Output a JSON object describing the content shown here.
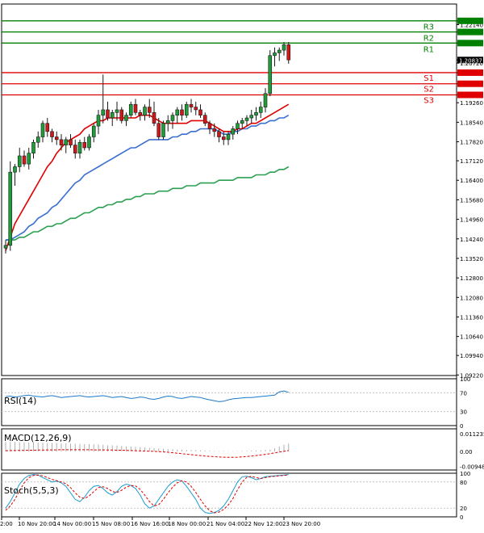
{
  "chart_data": {
    "type": "candlestick",
    "instrument_price_label": "1.20837",
    "x_tick_labels": [
      "2:00",
      "10 Nov 20:00",
      "14 Nov 00:00",
      "15 Nov 08:00",
      "16 Nov 16:00",
      "18 Nov 00:00",
      "21 Nov 04:00",
      "22 Nov 12:00",
      "23 Nov 20:00"
    ],
    "main_panel": {
      "y_range": [
        1.092,
        1.229
      ],
      "y_tick_labels": [
        "1.22280",
        "1.22140",
        "1.21870",
        "1.21460",
        "1.20837",
        "1.20720",
        "1.20370",
        "1.19960",
        "1.19550",
        "1.19260",
        "1.18540",
        "1.17820",
        "1.17120",
        "1.16400",
        "1.15680",
        "1.14960",
        "1.14240",
        "1.13520",
        "1.12800",
        "1.12080",
        "1.11360",
        "1.10640",
        "1.09940",
        "1.09220"
      ],
      "levels": [
        {
          "label": "",
          "value": 1.2228,
          "color": "#008000"
        },
        {
          "label": "R3",
          "value": 1.2187,
          "color": "#008000"
        },
        {
          "label": "R2",
          "value": 1.2146,
          "color": "#008000"
        },
        {
          "label": "R1",
          "value": null,
          "color": "#008000"
        },
        {
          "label": "S1",
          "value": 1.2037,
          "color": "#e00000"
        },
        {
          "label": "S2",
          "value": 1.1996,
          "color": "#e00000"
        },
        {
          "label": "S3",
          "value": 1.1955,
          "color": "#e00000"
        }
      ],
      "candles": [
        [
          1.139,
          1.142,
          1.137,
          1.14
        ],
        [
          1.14,
          1.171,
          1.138,
          1.167
        ],
        [
          1.167,
          1.17,
          1.162,
          1.169
        ],
        [
          1.169,
          1.176,
          1.167,
          1.173
        ],
        [
          1.173,
          1.175,
          1.169,
          1.17
        ],
        [
          1.17,
          1.176,
          1.168,
          1.174
        ],
        [
          1.174,
          1.179,
          1.172,
          1.178
        ],
        [
          1.178,
          1.182,
          1.176,
          1.18
        ],
        [
          1.18,
          1.186,
          1.178,
          1.185
        ],
        [
          1.185,
          1.187,
          1.18,
          1.182
        ],
        [
          1.182,
          1.183,
          1.178,
          1.18
        ],
        [
          1.18,
          1.182,
          1.177,
          1.179
        ],
        [
          1.179,
          1.181,
          1.175,
          1.177
        ],
        [
          1.177,
          1.18,
          1.174,
          1.179
        ],
        [
          1.179,
          1.181,
          1.176,
          1.177
        ],
        [
          1.177,
          1.179,
          1.172,
          1.174
        ],
        [
          1.174,
          1.179,
          1.172,
          1.178
        ],
        [
          1.178,
          1.18,
          1.175,
          1.176
        ],
        [
          1.176,
          1.181,
          1.175,
          1.18
        ],
        [
          1.18,
          1.185,
          1.178,
          1.184
        ],
        [
          1.184,
          1.19,
          1.181,
          1.188
        ],
        [
          1.188,
          1.203,
          1.185,
          1.19
        ],
        [
          1.19,
          1.193,
          1.186,
          1.187
        ],
        [
          1.187,
          1.19,
          1.184,
          1.189
        ],
        [
          1.189,
          1.193,
          1.186,
          1.19
        ],
        [
          1.19,
          1.191,
          1.185,
          1.186
        ],
        [
          1.186,
          1.189,
          1.184,
          1.188
        ],
        [
          1.188,
          1.193,
          1.187,
          1.192
        ],
        [
          1.192,
          1.194,
          1.188,
          1.189
        ],
        [
          1.189,
          1.19,
          1.186,
          1.188
        ],
        [
          1.188,
          1.192,
          1.186,
          1.191
        ],
        [
          1.191,
          1.194,
          1.187,
          1.189
        ],
        [
          1.189,
          1.193,
          1.184,
          1.185
        ],
        [
          1.185,
          1.187,
          1.179,
          1.18
        ],
        [
          1.18,
          1.186,
          1.179,
          1.185
        ],
        [
          1.185,
          1.188,
          1.182,
          1.186
        ],
        [
          1.186,
          1.189,
          1.183,
          1.188
        ],
        [
          1.188,
          1.191,
          1.185,
          1.19
        ],
        [
          1.19,
          1.192,
          1.186,
          1.188
        ],
        [
          1.188,
          1.193,
          1.187,
          1.192
        ],
        [
          1.192,
          1.194,
          1.189,
          1.191
        ],
        [
          1.191,
          1.193,
          1.188,
          1.19
        ],
        [
          1.19,
          1.192,
          1.187,
          1.188
        ],
        [
          1.188,
          1.189,
          1.184,
          1.185
        ],
        [
          1.185,
          1.186,
          1.181,
          1.183
        ],
        [
          1.183,
          1.185,
          1.18,
          1.182
        ],
        [
          1.182,
          1.183,
          1.178,
          1.18
        ],
        [
          1.18,
          1.182,
          1.177,
          1.179
        ],
        [
          1.179,
          1.182,
          1.177,
          1.181
        ],
        [
          1.181,
          1.184,
          1.179,
          1.183
        ],
        [
          1.183,
          1.186,
          1.181,
          1.185
        ],
        [
          1.185,
          1.187,
          1.183,
          1.186
        ],
        [
          1.186,
          1.188,
          1.184,
          1.187
        ],
        [
          1.187,
          1.19,
          1.185,
          1.188
        ],
        [
          1.188,
          1.191,
          1.186,
          1.189
        ],
        [
          1.189,
          1.193,
          1.187,
          1.191
        ],
        [
          1.191,
          1.198,
          1.189,
          1.196
        ],
        [
          1.196,
          1.212,
          1.195,
          1.21
        ],
        [
          1.21,
          1.213,
          1.206,
          1.211
        ],
        [
          1.211,
          1.213,
          1.208,
          1.212
        ],
        [
          1.212,
          1.215,
          1.21,
          1.214
        ],
        [
          1.214,
          1.215,
          1.207,
          1.2084
        ]
      ],
      "ma_fast": {
        "color": "#e00000",
        "values": [
          1.138,
          1.143,
          1.148,
          1.151,
          1.154,
          1.157,
          1.16,
          1.163,
          1.166,
          1.169,
          1.171,
          1.174,
          1.176,
          1.178,
          1.179,
          1.18,
          1.181,
          1.183,
          1.184,
          1.185,
          1.186,
          1.186,
          1.187,
          1.187,
          1.187,
          1.187,
          1.187,
          1.187,
          1.187,
          1.188,
          1.188,
          1.188,
          1.187,
          1.186,
          1.185,
          1.185,
          1.185,
          1.185,
          1.185,
          1.185,
          1.186,
          1.186,
          1.186,
          1.186,
          1.185,
          1.184,
          1.183,
          1.182,
          1.182,
          1.182,
          1.183,
          1.183,
          1.184,
          1.185,
          1.185,
          1.186,
          1.187,
          1.188,
          1.189,
          1.19,
          1.191,
          1.192
        ]
      },
      "ma_mid": {
        "color": "#3a6fd0",
        "values": [
          1.142,
          1.142,
          1.143,
          1.144,
          1.145,
          1.147,
          1.148,
          1.15,
          1.151,
          1.152,
          1.154,
          1.155,
          1.157,
          1.159,
          1.161,
          1.163,
          1.164,
          1.166,
          1.167,
          1.168,
          1.169,
          1.17,
          1.171,
          1.172,
          1.173,
          1.174,
          1.175,
          1.176,
          1.176,
          1.177,
          1.178,
          1.179,
          1.179,
          1.179,
          1.179,
          1.179,
          1.18,
          1.18,
          1.181,
          1.181,
          1.182,
          1.182,
          1.183,
          1.183,
          1.183,
          1.183,
          1.182,
          1.181,
          1.181,
          1.182,
          1.182,
          1.183,
          1.183,
          1.184,
          1.184,
          1.185,
          1.185,
          1.186,
          1.186,
          1.187,
          1.187,
          1.188
        ]
      },
      "ma_slow": {
        "color": "#2aa050",
        "values": [
          1.142,
          1.142,
          1.142,
          1.143,
          1.143,
          1.144,
          1.145,
          1.145,
          1.146,
          1.147,
          1.147,
          1.148,
          1.148,
          1.149,
          1.15,
          1.15,
          1.151,
          1.152,
          1.152,
          1.153,
          1.154,
          1.154,
          1.155,
          1.155,
          1.156,
          1.156,
          1.157,
          1.157,
          1.158,
          1.158,
          1.159,
          1.159,
          1.159,
          1.16,
          1.16,
          1.16,
          1.161,
          1.161,
          1.161,
          1.162,
          1.162,
          1.162,
          1.163,
          1.163,
          1.163,
          1.163,
          1.164,
          1.164,
          1.164,
          1.164,
          1.165,
          1.165,
          1.165,
          1.165,
          1.166,
          1.166,
          1.166,
          1.167,
          1.167,
          1.168,
          1.168,
          1.169
        ]
      }
    },
    "rsi_panel": {
      "label": "RSI(14)",
      "y_range": [
        0,
        100
      ],
      "y_tick_labels": [
        "100",
        "70",
        "30",
        "0"
      ],
      "color": "#1e78c8",
      "values": [
        62,
        63,
        61,
        62,
        64,
        65,
        63,
        62,
        61,
        63,
        64,
        62,
        60,
        61,
        62,
        63,
        64,
        62,
        61,
        62,
        63,
        64,
        62,
        60,
        61,
        62,
        60,
        58,
        59,
        61,
        60,
        57,
        56,
        58,
        61,
        63,
        62,
        59,
        58,
        60,
        62,
        61,
        60,
        57,
        55,
        53,
        51,
        52,
        55,
        57,
        58,
        59,
        60,
        60,
        61,
        62,
        63,
        64,
        65,
        72,
        74,
        71
      ]
    },
    "macd_panel": {
      "label": "MACD(12,26,9)",
      "y_range": [
        -0.0117,
        0.0143
      ],
      "y_tick_labels": [
        "0.011235",
        "0.00",
        "-0.009486"
      ],
      "hist_color": "#b0b0b0",
      "signal_color": "#e00000",
      "hist": [
        0.006,
        0.0061,
        0.006,
        0.0059,
        0.0058,
        0.0057,
        0.0057,
        0.0056,
        0.0055,
        0.0054,
        0.0054,
        0.0053,
        0.0052,
        0.0051,
        0.005,
        0.0049,
        0.0048,
        0.0047,
        0.0046,
        0.0045,
        0.0044,
        0.0042,
        0.004,
        0.0039,
        0.0037,
        0.0035,
        0.0033,
        0.0031,
        0.0029,
        0.0027,
        0.0025,
        0.0023,
        0.0021,
        0.0019,
        0.0017,
        0.0015,
        0.0014,
        0.0012,
        0.0011,
        0.001,
        0.0009,
        0.0008,
        0.0007,
        0.0006,
        0.0005,
        0.0004,
        0.0003,
        0.0003,
        0.0002,
        0.0002,
        0.0003,
        0.0003,
        0.0004,
        0.0005,
        0.0006,
        0.0007,
        0.0009,
        0.0012,
        0.002,
        0.0032,
        0.0042,
        0.005
      ],
      "signal": [
        0.0005,
        0.0006,
        0.0006,
        0.0007,
        0.0007,
        0.0008,
        0.0008,
        0.0009,
        0.0009,
        0.001,
        0.001,
        0.001,
        0.0011,
        0.0011,
        0.0011,
        0.0011,
        0.0011,
        0.0011,
        0.0011,
        0.001,
        0.001,
        0.001,
        0.0009,
        0.0009,
        0.0008,
        0.0008,
        0.0007,
        0.0006,
        0.0005,
        0.0004,
        0.0003,
        0.0002,
        0.0001,
        -0.0001,
        -0.0003,
        -0.0005,
        -0.0008,
        -0.0011,
        -0.0014,
        -0.0017,
        -0.002,
        -0.0023,
        -0.0026,
        -0.0029,
        -0.0031,
        -0.0033,
        -0.0035,
        -0.0036,
        -0.0037,
        -0.0037,
        -0.0036,
        -0.0034,
        -0.0032,
        -0.0029,
        -0.0026,
        -0.0022,
        -0.0018,
        -0.0014,
        -0.0009,
        -0.0004,
        0.0001,
        0.0006
      ]
    },
    "stoch_panel": {
      "label": "Stoch(5,5,3)",
      "y_range": [
        0,
        100
      ],
      "y_tick_labels": [
        "100",
        "80",
        "20",
        "0"
      ],
      "k_color": "#1e9bd0",
      "d_color": "#e00000",
      "k": [
        20,
        35,
        55,
        75,
        88,
        95,
        97,
        96,
        90,
        85,
        80,
        82,
        78,
        70,
        55,
        40,
        35,
        45,
        60,
        70,
        72,
        65,
        55,
        50,
        58,
        70,
        75,
        72,
        65,
        50,
        30,
        20,
        25,
        40,
        55,
        70,
        80,
        85,
        82,
        70,
        55,
        40,
        20,
        10,
        8,
        10,
        15,
        25,
        40,
        60,
        80,
        92,
        93,
        90,
        85,
        88,
        92,
        93,
        94,
        95,
        96,
        97
      ],
      "d": [
        15,
        25,
        40,
        60,
        78,
        90,
        95,
        96,
        94,
        90,
        86,
        83,
        80,
        76,
        67,
        55,
        45,
        42,
        48,
        58,
        67,
        69,
        65,
        58,
        56,
        61,
        68,
        72,
        71,
        63,
        50,
        35,
        25,
        28,
        40,
        55,
        68,
        78,
        83,
        80,
        70,
        56,
        40,
        25,
        14,
        9,
        11,
        17,
        27,
        42,
        62,
        80,
        91,
        93,
        90,
        88,
        90,
        92,
        93,
        94,
        95,
        96
      ]
    }
  }
}
